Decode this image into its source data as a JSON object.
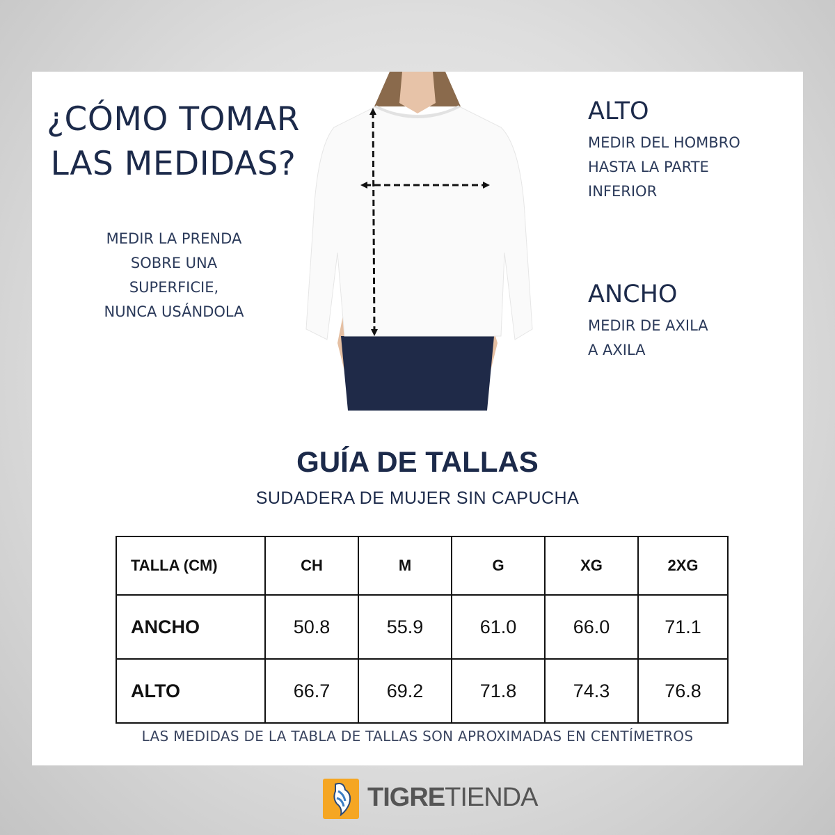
{
  "how_to": {
    "title_line1": "¿CÓMO TOMAR",
    "title_line2": "LAS MEDIDAS?",
    "note_lines": [
      "MEDIR LA PRENDA",
      "SOBRE UNA",
      "SUPERFICIE,",
      "NUNCA USÁNDOLA"
    ]
  },
  "alto": {
    "heading": "ALTO",
    "lines": [
      "MEDIR DEL HOMBRO",
      "HASTA LA PARTE",
      "INFERIOR"
    ]
  },
  "ancho": {
    "heading": "ANCHO",
    "lines": [
      "MEDIR DE AXILA",
      "A AXILA"
    ]
  },
  "guide": {
    "title": "GUÍA DE TALLAS",
    "subtitle": "SUDADERA DE MUJER SIN CAPUCHA"
  },
  "table": {
    "headers": [
      "TALLA (CM)",
      "CH",
      "M",
      "G",
      "XG",
      "2XG"
    ],
    "rows": [
      {
        "label": "ANCHO",
        "values": [
          "50.8",
          "55.9",
          "61.0",
          "66.0",
          "71.1"
        ]
      },
      {
        "label": "ALTO",
        "values": [
          "66.7",
          "69.2",
          "71.8",
          "74.3",
          "76.8"
        ]
      }
    ]
  },
  "footnote": "LAS MEDIDAS DE LA TABLA DE TALLAS SON APROXIMADAS EN CENTÍMETROS",
  "logo": {
    "bold": "TIGRE",
    "light": "TIENDA",
    "icon": "tiger-icon",
    "accent": "#f5a623"
  },
  "colors": {
    "text": "#1c2a4a",
    "panel": "#ffffff"
  }
}
